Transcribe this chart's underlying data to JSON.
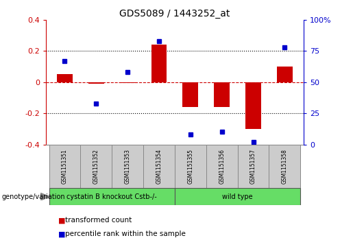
{
  "title": "GDS5089 / 1443252_at",
  "samples": [
    "GSM1151351",
    "GSM1151352",
    "GSM1151353",
    "GSM1151354",
    "GSM1151355",
    "GSM1151356",
    "GSM1151357",
    "GSM1151358"
  ],
  "bar_values": [
    0.05,
    -0.01,
    -0.005,
    0.24,
    -0.16,
    -0.16,
    -0.3,
    0.1
  ],
  "dot_percentiles": [
    67,
    33,
    58,
    83,
    8,
    10,
    2,
    78
  ],
  "ylim": [
    -0.4,
    0.4
  ],
  "y2lim": [
    0,
    100
  ],
  "yticks": [
    -0.4,
    -0.2,
    0.0,
    0.2,
    0.4
  ],
  "y2ticks": [
    0,
    25,
    50,
    75,
    100
  ],
  "ytick_labels": [
    "-0.4",
    "-0.2",
    "0",
    "0.2",
    "0.4"
  ],
  "y2tick_labels": [
    "0",
    "25",
    "50",
    "75",
    "100%"
  ],
  "bar_color": "#CC0000",
  "dot_color": "#0000CC",
  "hline_color": "#CC0000",
  "grid_color": "#000000",
  "bg_color": "#FFFFFF",
  "group1_label": "cystatin B knockout Cstb-/-",
  "group2_label": "wild type",
  "group1_color": "#66DD66",
  "group2_color": "#66DD66",
  "group1_samples": [
    0,
    1,
    2,
    3
  ],
  "group2_samples": [
    4,
    5,
    6,
    7
  ],
  "genotype_label": "genotype/variation",
  "legend_bar_label": "transformed count",
  "legend_dot_label": "percentile rank within the sample",
  "bar_width": 0.5,
  "sample_box_color": "#CCCCCC",
  "spine_color": "#888888"
}
